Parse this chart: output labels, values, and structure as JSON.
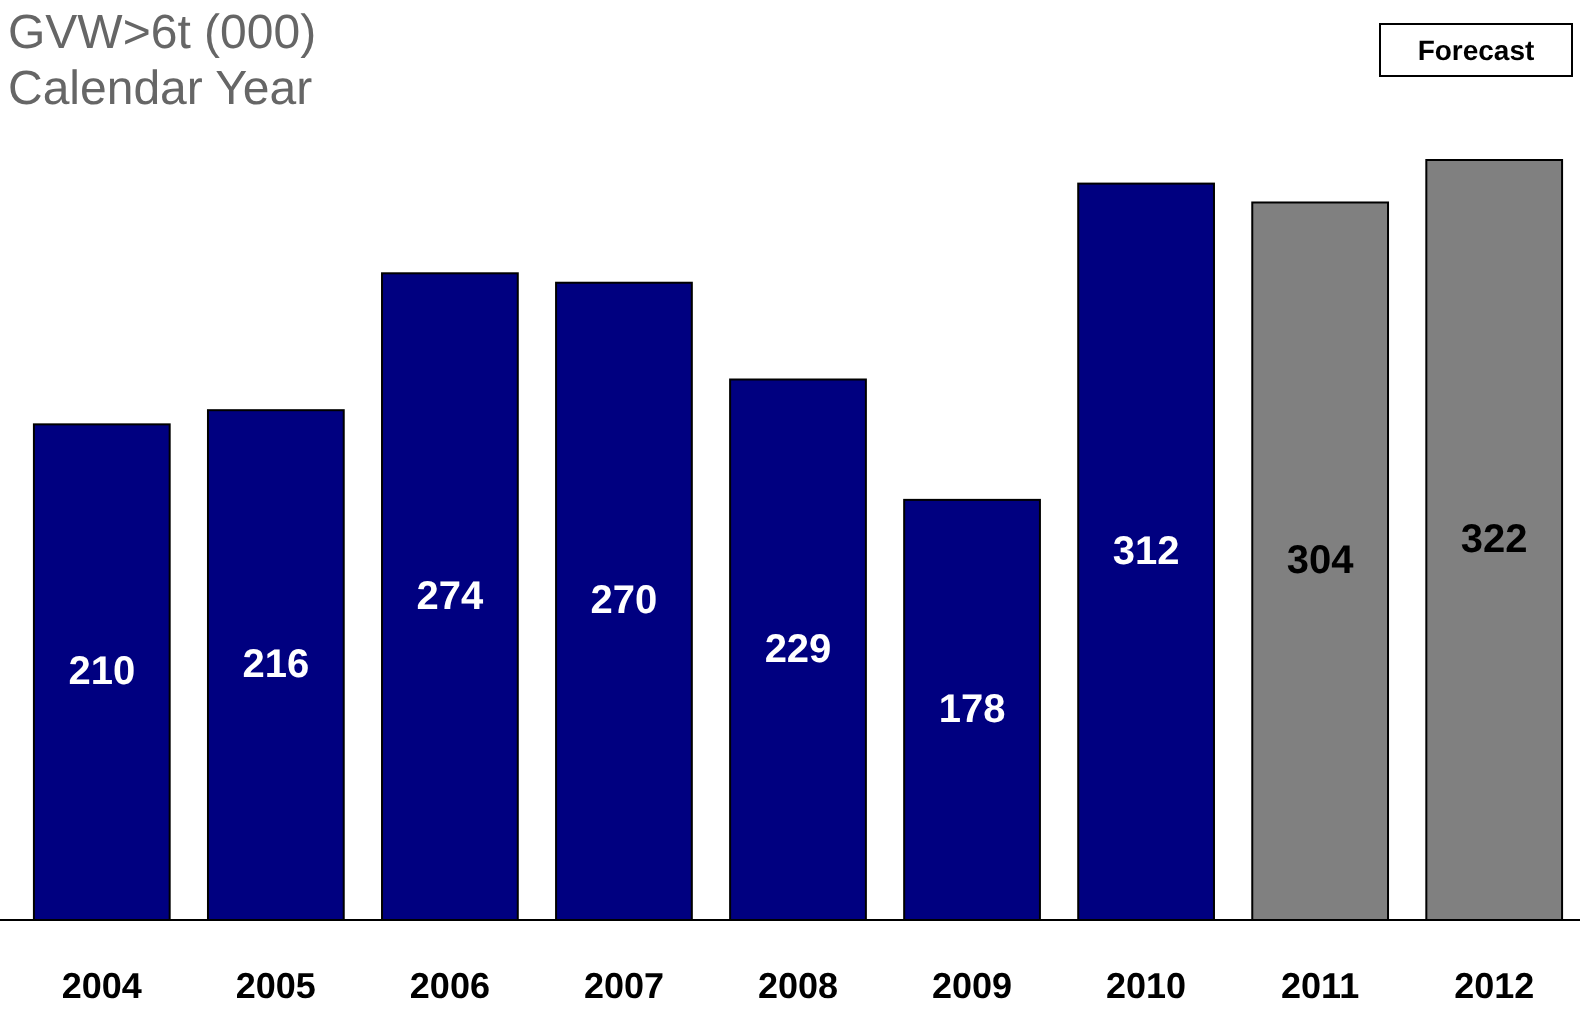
{
  "chart_data": {
    "type": "bar",
    "title": "GVW>6t (000)",
    "subtitle": "Calendar Year",
    "categories": [
      "2004",
      "2005",
      "2006",
      "2007",
      "2008",
      "2009",
      "2010",
      "2011",
      "2012"
    ],
    "values": [
      210,
      216,
      274,
      270,
      229,
      178,
      312,
      304,
      322
    ],
    "colors": [
      "#000080",
      "#000080",
      "#000080",
      "#000080",
      "#000080",
      "#000080",
      "#000080",
      "#808080",
      "#808080"
    ],
    "data_labels": true,
    "annotations": [
      "Forecast"
    ]
  }
}
